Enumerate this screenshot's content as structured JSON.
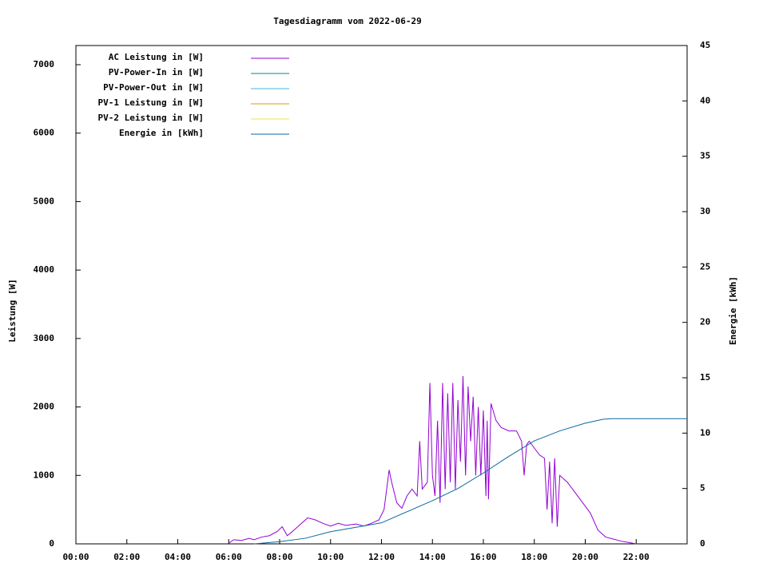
{
  "chart_data": {
    "type": "line",
    "title": "Tagesdiagramm vom 2022-06-29",
    "y_label": "Leistung [W]",
    "y2_label": "Energie [kWh]",
    "xlim": [
      0,
      24
    ],
    "xticks": [
      {
        "value": 0,
        "label": "00:00"
      },
      {
        "value": 2,
        "label": "02:00"
      },
      {
        "value": 4,
        "label": "04:00"
      },
      {
        "value": 6,
        "label": "06:00"
      },
      {
        "value": 8,
        "label": "08:00"
      },
      {
        "value": 10,
        "label": "10:00"
      },
      {
        "value": 12,
        "label": "12:00"
      },
      {
        "value": 14,
        "label": "14:00"
      },
      {
        "value": 16,
        "label": "16:00"
      },
      {
        "value": 18,
        "label": "18:00"
      },
      {
        "value": 20,
        "label": "20:00"
      },
      {
        "value": 22,
        "label": "22:00"
      }
    ],
    "ylim": [
      0,
      7280
    ],
    "yticks": [
      0,
      1000,
      2000,
      3000,
      4000,
      5000,
      6000,
      7000
    ],
    "y2lim": [
      0,
      45
    ],
    "y2ticks": [
      0,
      5,
      10,
      15,
      20,
      25,
      30,
      35,
      40,
      45
    ],
    "legend": "upper left",
    "series": [
      {
        "name": "AC Leistung in [W]",
        "color": "#9400d3",
        "x": [
          6.0,
          6.2,
          6.5,
          6.8,
          7.0,
          7.3,
          7.6,
          7.9,
          8.1,
          8.3,
          8.5,
          8.8,
          9.1,
          9.4,
          9.7,
          10.0,
          10.3,
          10.6,
          11.0,
          11.3,
          11.6,
          11.9,
          12.1,
          12.3,
          12.4,
          12.6,
          12.8,
          13.0,
          13.2,
          13.4,
          13.5,
          13.6,
          13.8,
          13.9,
          14.0,
          14.1,
          14.2,
          14.3,
          14.4,
          14.5,
          14.6,
          14.7,
          14.8,
          14.9,
          15.0,
          15.1,
          15.2,
          15.3,
          15.4,
          15.5,
          15.6,
          15.7,
          15.8,
          15.9,
          16.0,
          16.1,
          16.15,
          16.2,
          16.3,
          16.5,
          16.7,
          17.0,
          17.3,
          17.5,
          17.6,
          17.7,
          17.8,
          18.0,
          18.2,
          18.4,
          18.5,
          18.6,
          18.7,
          18.8,
          18.9,
          19.0,
          19.3,
          19.6,
          19.9,
          20.2,
          20.5,
          20.8,
          21.1,
          21.4,
          21.7,
          22.0
        ],
        "values": [
          10,
          60,
          50,
          80,
          60,
          100,
          120,
          180,
          250,
          120,
          180,
          280,
          380,
          350,
          300,
          260,
          300,
          270,
          290,
          260,
          300,
          350,
          500,
          1080,
          900,
          600,
          520,
          700,
          800,
          700,
          1500,
          800,
          900,
          2350,
          1000,
          700,
          1800,
          600,
          2350,
          800,
          2200,
          900,
          2350,
          800,
          2100,
          1200,
          2450,
          1000,
          2300,
          1500,
          2150,
          1000,
          2000,
          1000,
          1950,
          700,
          1800,
          650,
          2050,
          1800,
          1700,
          1650,
          1650,
          1500,
          1000,
          1450,
          1500,
          1400,
          1300,
          1250,
          500,
          1200,
          300,
          1250,
          250,
          1000,
          900,
          750,
          600,
          450,
          200,
          100,
          70,
          40,
          20,
          0
        ]
      },
      {
        "name": "PV-Power-In in [W]",
        "color": "#008b8b",
        "x": [],
        "values": []
      },
      {
        "name": "PV-Power-Out in [W]",
        "color": "#3cb4e6",
        "x": [],
        "values": []
      },
      {
        "name": "PV-1 Leistung in [W]",
        "color": "#d4a000",
        "x": [],
        "values": []
      },
      {
        "name": "PV-2 Leistung in [W]",
        "color": "#f0e442",
        "x": [],
        "values": []
      },
      {
        "name": "Energie in [kWh]",
        "color": "#0a6aa0",
        "axis": "y2",
        "x": [
          7.0,
          8.0,
          9.0,
          10.0,
          11.0,
          12.0,
          13.0,
          14.0,
          15.0,
          16.0,
          17.0,
          18.0,
          19.0,
          20.0,
          20.7,
          21.0,
          22.0,
          24.0
        ],
        "values": [
          0,
          0.2,
          0.5,
          1.1,
          1.5,
          1.9,
          2.9,
          3.9,
          5.0,
          6.4,
          7.9,
          9.3,
          10.2,
          10.9,
          11.25,
          11.3,
          11.3,
          11.3
        ]
      }
    ]
  }
}
